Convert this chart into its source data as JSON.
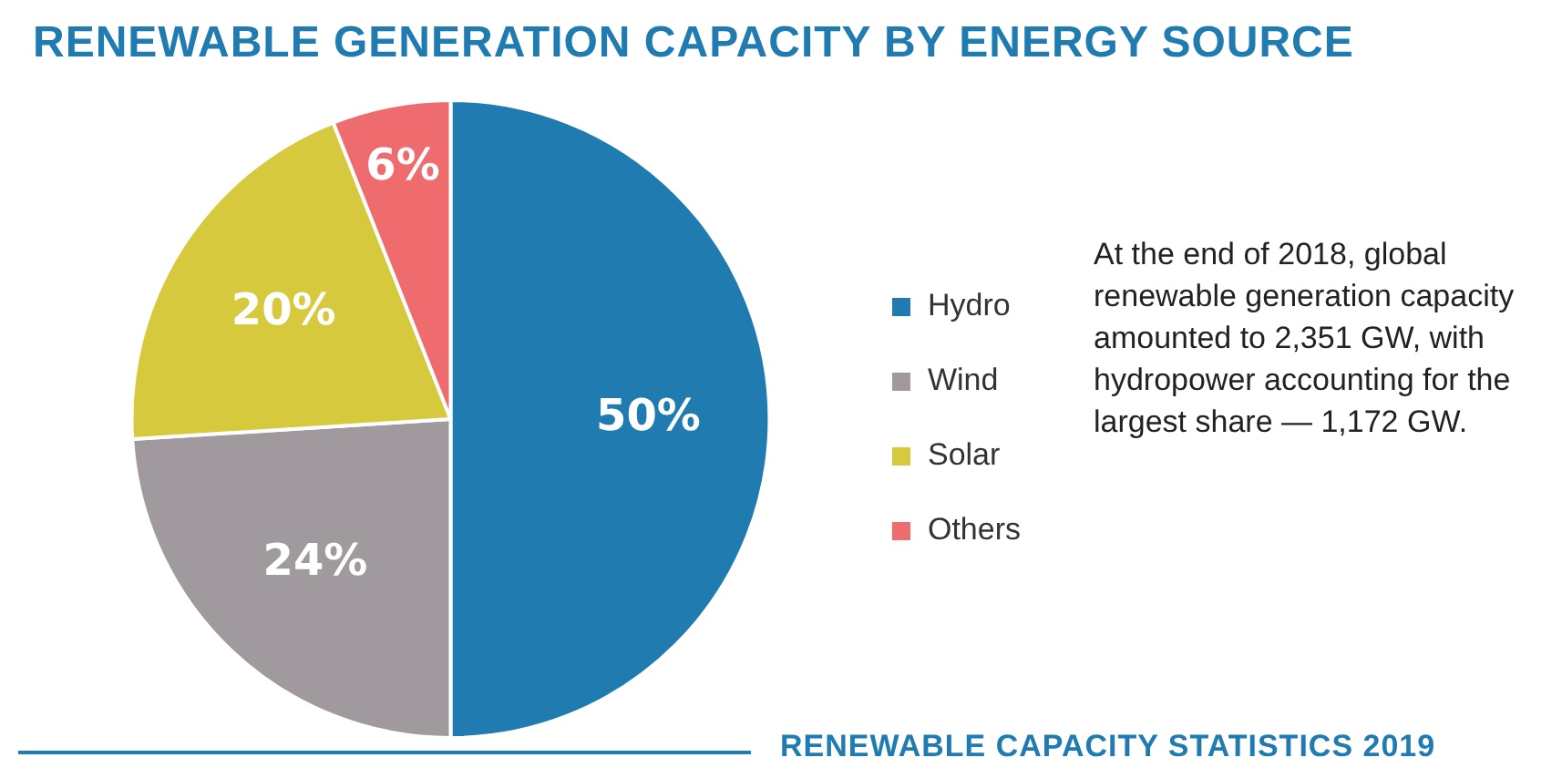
{
  "chart_data": {
    "type": "pie",
    "title": "RENEWABLE GENERATION CAPACITY BY ENERGY SOURCE",
    "categories": [
      "Hydro",
      "Wind",
      "Solar",
      "Others"
    ],
    "values": [
      50,
      24,
      20,
      6
    ],
    "colors": [
      "#1f7bb0",
      "#a09a9f",
      "#d7c93e",
      "#ee6b6e"
    ],
    "value_labels": [
      "50%",
      "24%",
      "20%",
      "6%"
    ],
    "legend": "right",
    "annotations": [
      "At the end of 2018, global renewable generation capacity amounted to 2,351 GW, with hydropower accounting for the largest share — 1,172 GW.",
      "RENEWABLE CAPACITY STATISTICS 2019"
    ]
  }
}
